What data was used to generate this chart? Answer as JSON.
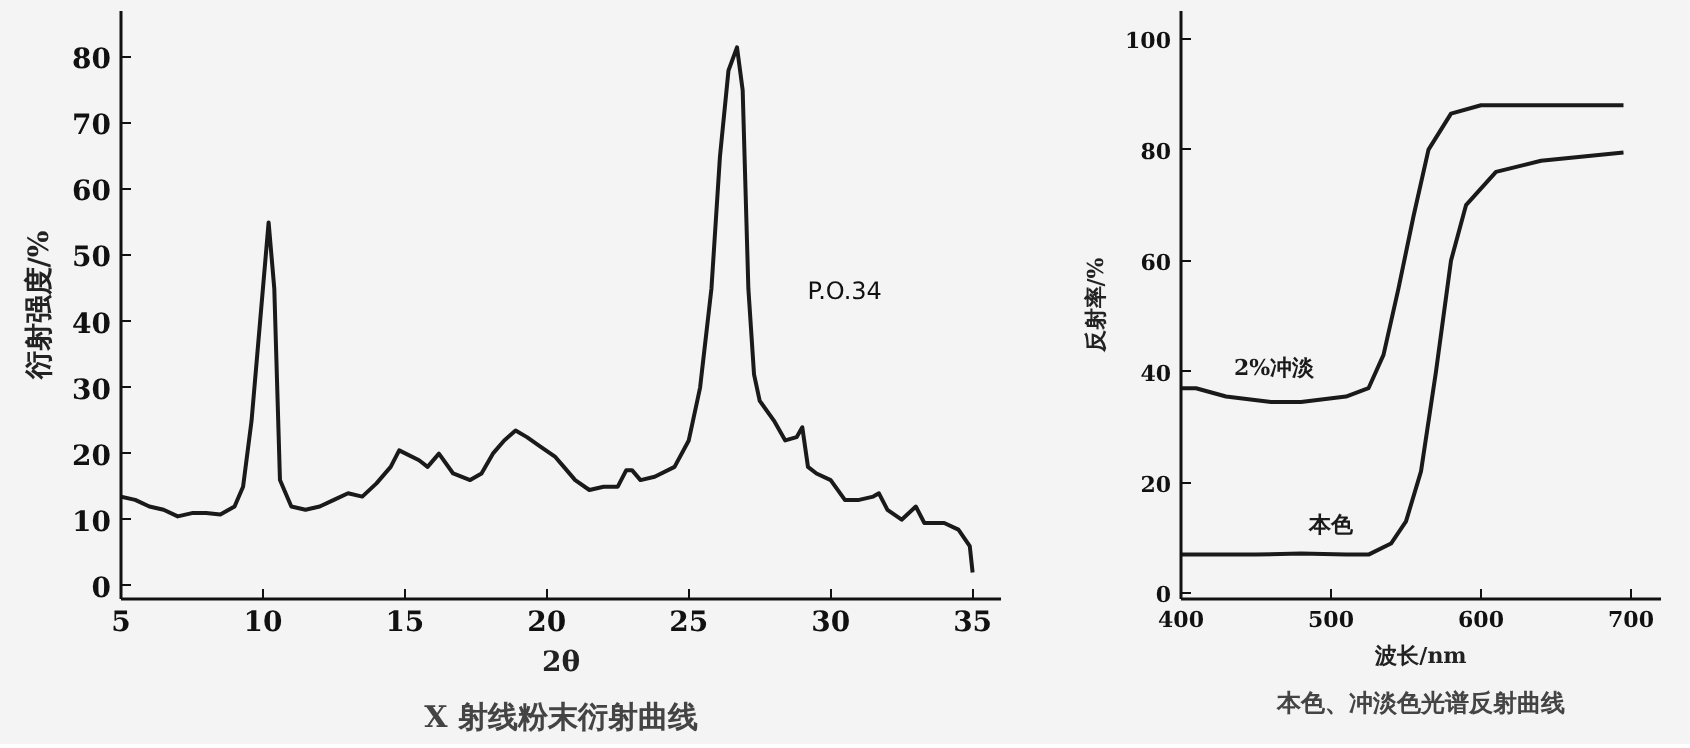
{
  "chart_data": [
    {
      "type": "line",
      "title": "X 射线粉末衍射曲线",
      "xlabel": "2θ",
      "ylabel": "衍射强度/%",
      "xlim": [
        5,
        36
      ],
      "ylim": [
        -2,
        87
      ],
      "xticks": [
        5,
        10,
        15,
        20,
        25,
        30,
        35
      ],
      "yticks": [
        0,
        10,
        20,
        30,
        40,
        50,
        60,
        70,
        80
      ],
      "grid": false,
      "marker": "none",
      "line_style": "solid",
      "annotations": [
        "P.O.34"
      ],
      "series": [
        {
          "color": "#1a1a1a",
          "x": [
            5,
            5.5,
            6,
            6.5,
            7,
            7.5,
            8,
            8.5,
            9,
            9.3,
            9.6,
            9.9,
            10.2,
            10.4,
            10.6,
            11,
            11.5,
            12,
            12.5,
            13,
            13.5,
            14,
            14.5,
            14.8,
            15.5,
            15.8,
            16.2,
            16.7,
            17.3,
            17.7,
            18.1,
            18.5,
            18.9,
            19.3,
            19.8,
            20.3,
            20.6,
            21,
            21.5,
            22,
            22.5,
            22.8,
            23,
            23.3,
            23.8,
            24.5,
            25,
            25.4,
            25.8,
            26.1,
            26.4,
            26.7,
            26.9,
            27.1,
            27.3,
            27.5,
            28,
            28.4,
            28.8,
            29,
            29.2,
            29.5,
            30,
            30.5,
            31,
            31.5,
            31.7,
            32,
            32.5,
            33,
            33.3,
            34,
            34.5,
            34.9,
            35
          ],
          "values": [
            13.5,
            13,
            12,
            11.5,
            10.5,
            11,
            11,
            10.8,
            12,
            15,
            25,
            40,
            55,
            45,
            16,
            12,
            11.5,
            12,
            13,
            14,
            13.5,
            15.5,
            18,
            20.5,
            19,
            18,
            20,
            17,
            16,
            17,
            20,
            22,
            23.5,
            22.5,
            21,
            19.5,
            18,
            16,
            14.5,
            15,
            15,
            17.5,
            17.5,
            16,
            16.5,
            18,
            22,
            30,
            45,
            65,
            78,
            81.5,
            75,
            45,
            32,
            28,
            25,
            22,
            22.5,
            24,
            18,
            17,
            16,
            13,
            13,
            13.5,
            14,
            11.5,
            10,
            12,
            9.5,
            9.5,
            8.5,
            6,
            2
          ]
        }
      ]
    },
    {
      "type": "line",
      "title": "本色、冲淡色光谱反射曲线",
      "xlabel": "波长/nm",
      "ylabel": "反射率/%",
      "xlim": [
        400,
        720
      ],
      "ylim": [
        -1,
        105
      ],
      "xticks": [
        400,
        500,
        600,
        700
      ],
      "yticks": [
        0,
        20,
        40,
        60,
        80,
        100
      ],
      "grid": false,
      "marker": "none",
      "line_style": "solid",
      "series": [
        {
          "name": "2%冲淡",
          "color": "#1a1a1a",
          "x": [
            400,
            410,
            430,
            460,
            480,
            510,
            525,
            535,
            545,
            555,
            565,
            580,
            600,
            650,
            695
          ],
          "values": [
            37,
            37,
            35.5,
            34.5,
            34.5,
            35.5,
            37,
            43,
            55,
            68,
            80,
            86.5,
            88,
            88,
            88
          ]
        },
        {
          "name": "本色",
          "color": "#1a1a1a",
          "x": [
            400,
            450,
            480,
            510,
            525,
            540,
            550,
            560,
            570,
            580,
            590,
            610,
            640,
            695
          ],
          "values": [
            7,
            7,
            7.2,
            7,
            7,
            9,
            13,
            22,
            40,
            60,
            70,
            76,
            78,
            79.5
          ]
        }
      ]
    }
  ]
}
